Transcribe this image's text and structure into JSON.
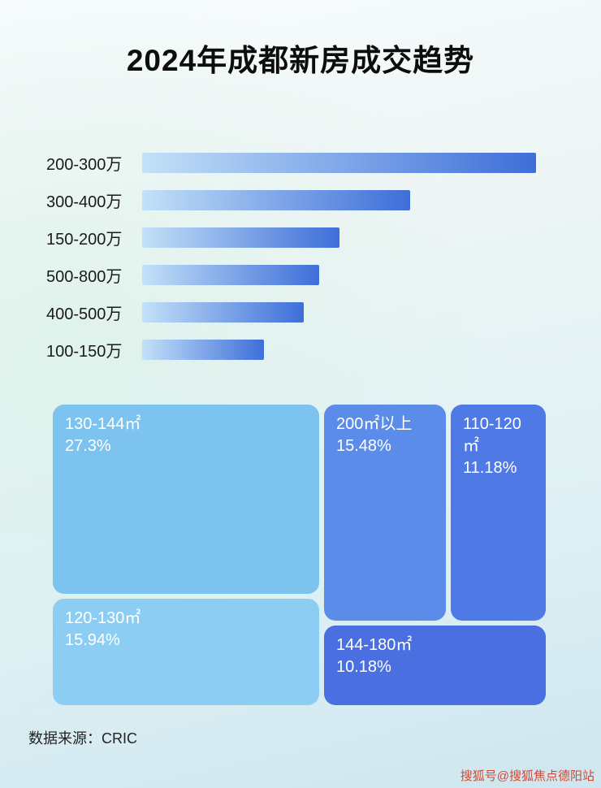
{
  "page": {
    "title": "2024年成都新房成交趋势",
    "source": "数据来源：CRIC",
    "watermark": "搜狐号@搜狐焦点德阳站"
  },
  "chart_data": [
    {
      "type": "bar",
      "orientation": "horizontal",
      "title": "2024年成都新房成交趋势",
      "categories": [
        "200-300万",
        "300-400万",
        "150-200万",
        "500-800万",
        "400-500万",
        "100-150万"
      ],
      "values": [
        100,
        68,
        50,
        45,
        41,
        31
      ],
      "value_note": "no numeric labels shown; values estimated as % of longest bar length",
      "xlabel": "",
      "ylabel": "",
      "legend": "none",
      "grid": false
    },
    {
      "type": "treemap",
      "items": [
        {
          "label": "130-144㎡",
          "value": 27.3,
          "display": "27.3%"
        },
        {
          "label": "120-130㎡",
          "value": 15.94,
          "display": "15.94%"
        },
        {
          "label": "200㎡以上",
          "value": 15.48,
          "display": "15.48%"
        },
        {
          "label": "110-120㎡",
          "value": 11.18,
          "display": "11.18%"
        },
        {
          "label": "144-180㎡",
          "value": 10.18,
          "display": "10.18%"
        }
      ]
    }
  ],
  "colors": {
    "bar-from": "#c3e1f8",
    "bar-to": "#3e6ed9",
    "blk-130-144": "#7cc3ef",
    "blk-120-130": "#8ccdf3",
    "blk-200-plus": "#5c8cea",
    "blk-110-120": "#4f7ae6",
    "blk-144-180": "#4a6fe0",
    "watermark": "#cf4936"
  }
}
